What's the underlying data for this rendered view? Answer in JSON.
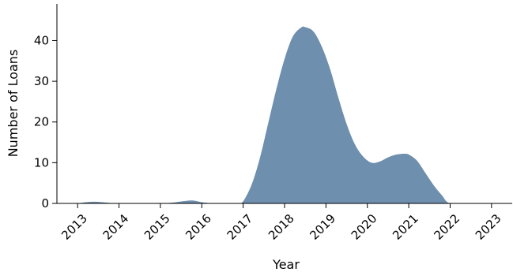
{
  "chart_data": {
    "type": "area",
    "xlabel": "Year",
    "ylabel": "Number of Loans",
    "xlim": [
      2012.5,
      2023.5
    ],
    "ylim": [
      0,
      49
    ],
    "x_ticks": [
      2013,
      2014,
      2015,
      2016,
      2017,
      2018,
      2019,
      2020,
      2021,
      2022,
      2023
    ],
    "x_tick_labels": [
      "2013",
      "2014",
      "2015",
      "2016",
      "2017",
      "2018",
      "2019",
      "2020",
      "2021",
      "2022",
      "2023"
    ],
    "y_ticks": [
      0,
      10,
      20,
      30,
      40
    ],
    "y_tick_labels": [
      "0",
      "10",
      "20",
      "30",
      "40"
    ],
    "grid": false,
    "fill_color": "#6e8fad",
    "series": [
      {
        "x": [
          2013.0,
          2013.2,
          2013.4,
          2013.6,
          2013.8,
          2014.0,
          2014.2,
          2014.5,
          2014.8,
          2015.0,
          2015.3,
          2015.6,
          2015.8,
          2016.0,
          2016.3,
          2016.6,
          2016.9,
          2017.0,
          2017.2,
          2017.4,
          2017.6,
          2017.8,
          2018.0,
          2018.2,
          2018.4,
          2018.5,
          2018.7,
          2018.9,
          2019.1,
          2019.3,
          2019.5,
          2019.7,
          2019.9,
          2020.1,
          2020.3,
          2020.5,
          2020.7,
          2020.9,
          2021.0,
          2021.2,
          2021.4,
          2021.6,
          2021.8,
          2022.0,
          2022.5,
          2023.0
        ],
        "y": [
          0.0,
          0.3,
          0.4,
          0.3,
          0.1,
          0.0,
          0.0,
          0.0,
          0.0,
          0.0,
          0.2,
          0.6,
          0.7,
          0.3,
          0.0,
          0.0,
          0.0,
          0.5,
          4.5,
          11.0,
          19.5,
          28.0,
          35.5,
          41.0,
          43.2,
          43.3,
          42.2,
          38.5,
          33.0,
          26.0,
          19.5,
          14.5,
          11.5,
          10.0,
          10.3,
          11.3,
          12.0,
          12.2,
          12.0,
          10.5,
          7.5,
          4.5,
          2.0,
          0.0,
          0.0,
          0.0
        ]
      }
    ]
  }
}
